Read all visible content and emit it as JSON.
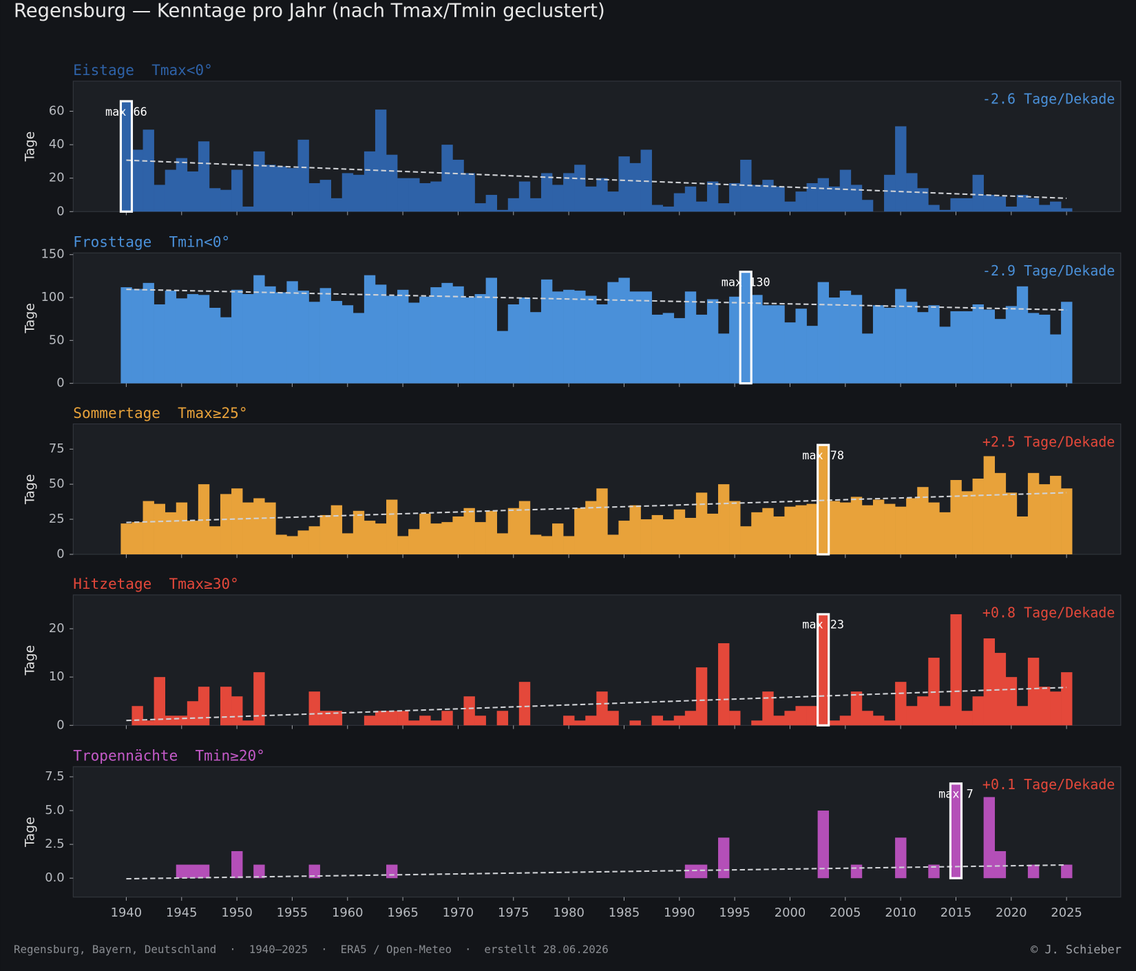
{
  "title": "Regensburg — Kenntage pro Jahr (nach Tmax/Tmin geclustert)",
  "footer": {
    "left": "Regensburg, Bayern, Deutschland  ·  1940–2025  ·  ERA5 / Open-Meteo  ·  erstellt 28.06.2026",
    "right": "© J. Schieber"
  },
  "chart_data": [
    {
      "type": "bar",
      "title": "Eistage",
      "subtitle": "Tmax<0°",
      "ylabel": "Tage",
      "color": "#2e62a8",
      "annotation": "max 66",
      "trend_label": "-2.6 Tage/Dekade",
      "trend_color": "#4a90d9",
      "x": [
        1940,
        1941,
        1942,
        1943,
        1944,
        1945,
        1946,
        1947,
        1948,
        1949,
        1950,
        1951,
        1952,
        1953,
        1954,
        1955,
        1956,
        1957,
        1958,
        1959,
        1960,
        1961,
        1962,
        1963,
        1964,
        1965,
        1966,
        1967,
        1968,
        1969,
        1970,
        1971,
        1972,
        1973,
        1974,
        1975,
        1976,
        1977,
        1978,
        1979,
        1980,
        1981,
        1982,
        1983,
        1984,
        1985,
        1986,
        1987,
        1988,
        1989,
        1990,
        1991,
        1992,
        1993,
        1994,
        1995,
        1996,
        1997,
        1998,
        1999,
        2000,
        2001,
        2002,
        2003,
        2004,
        2005,
        2006,
        2007,
        2008,
        2009,
        2010,
        2011,
        2012,
        2013,
        2014,
        2015,
        2016,
        2017,
        2018,
        2019,
        2020,
        2021,
        2022,
        2023,
        2024,
        2025
      ],
      "values": [
        66,
        37,
        49,
        16,
        25,
        32,
        24,
        42,
        14,
        13,
        25,
        3,
        36,
        28,
        27,
        26,
        43,
        17,
        19,
        8,
        23,
        22,
        36,
        61,
        34,
        20,
        20,
        17,
        18,
        40,
        31,
        23,
        5,
        10,
        1,
        8,
        18,
        8,
        23,
        16,
        23,
        28,
        15,
        20,
        12,
        33,
        29,
        37,
        4,
        3,
        11,
        15,
        6,
        18,
        5,
        17,
        31,
        16,
        19,
        15,
        6,
        12,
        17,
        20,
        15,
        25,
        16,
        7,
        0,
        22,
        51,
        23,
        14,
        4,
        1,
        8,
        8,
        22,
        10,
        9,
        3,
        10,
        8,
        4,
        6,
        2
      ],
      "xlim": [
        1935.2,
        2029.9
      ],
      "xticks": [
        1940,
        1945,
        1950,
        1955,
        1960,
        1965,
        1970,
        1975,
        1980,
        1985,
        1990,
        1995,
        2000,
        2005,
        2010,
        2015,
        2020,
        2025
      ],
      "ylim": [
        0,
        78
      ],
      "yticks": [
        0,
        20,
        40,
        60
      ]
    },
    {
      "type": "bar",
      "title": "Frosttage",
      "subtitle": "Tmin<0°",
      "ylabel": "Tage",
      "color": "#4a90d9",
      "annotation": "max 130",
      "trend_label": "-2.9 Tage/Dekade",
      "trend_color": "#4a90d9",
      "x": [
        1940,
        1941,
        1942,
        1943,
        1944,
        1945,
        1946,
        1947,
        1948,
        1949,
        1950,
        1951,
        1952,
        1953,
        1954,
        1955,
        1956,
        1957,
        1958,
        1959,
        1960,
        1961,
        1962,
        1963,
        1964,
        1965,
        1966,
        1967,
        1968,
        1969,
        1970,
        1971,
        1972,
        1973,
        1974,
        1975,
        1976,
        1977,
        1978,
        1979,
        1980,
        1981,
        1982,
        1983,
        1984,
        1985,
        1986,
        1987,
        1988,
        1989,
        1990,
        1991,
        1992,
        1993,
        1994,
        1995,
        1996,
        1997,
        1998,
        1999,
        2000,
        2001,
        2002,
        2003,
        2004,
        2005,
        2006,
        2007,
        2008,
        2009,
        2010,
        2011,
        2012,
        2013,
        2014,
        2015,
        2016,
        2017,
        2018,
        2019,
        2020,
        2021,
        2022,
        2023,
        2024,
        2025
      ],
      "values": [
        112,
        110,
        117,
        92,
        108,
        99,
        104,
        103,
        88,
        77,
        109,
        104,
        126,
        113,
        106,
        119,
        108,
        95,
        111,
        96,
        91,
        82,
        126,
        115,
        102,
        109,
        94,
        101,
        112,
        117,
        113,
        100,
        104,
        123,
        61,
        92,
        100,
        83,
        121,
        107,
        109,
        108,
        102,
        92,
        118,
        123,
        107,
        107,
        80,
        82,
        76,
        107,
        80,
        98,
        58,
        101,
        130,
        103,
        91,
        91,
        71,
        87,
        67,
        118,
        100,
        108,
        103,
        58,
        91,
        88,
        110,
        95,
        83,
        91,
        66,
        84,
        84,
        92,
        86,
        75,
        90,
        113,
        82,
        80,
        57,
        95
      ],
      "xlim": [
        1935.2,
        2029.9
      ],
      "xticks": [
        1940,
        1945,
        1950,
        1955,
        1960,
        1965,
        1970,
        1975,
        1980,
        1985,
        1990,
        1995,
        2000,
        2005,
        2010,
        2015,
        2020,
        2025
      ],
      "ylim": [
        0,
        152
      ],
      "yticks": [
        0,
        50,
        100,
        150
      ]
    },
    {
      "type": "bar",
      "title": "Sommertage",
      "subtitle": "Tmax≥25°",
      "ylabel": "Tage",
      "color": "#e8a23a",
      "annotation": "max 78",
      "trend_label": "+2.5 Tage/Dekade",
      "trend_color": "#e4483a",
      "x": [
        1940,
        1941,
        1942,
        1943,
        1944,
        1945,
        1946,
        1947,
        1948,
        1949,
        1950,
        1951,
        1952,
        1953,
        1954,
        1955,
        1956,
        1957,
        1958,
        1959,
        1960,
        1961,
        1962,
        1963,
        1964,
        1965,
        1966,
        1967,
        1968,
        1969,
        1970,
        1971,
        1972,
        1973,
        1974,
        1975,
        1976,
        1977,
        1978,
        1979,
        1980,
        1981,
        1982,
        1983,
        1984,
        1985,
        1986,
        1987,
        1988,
        1989,
        1990,
        1991,
        1992,
        1993,
        1994,
        1995,
        1996,
        1997,
        1998,
        1999,
        2000,
        2001,
        2002,
        2003,
        2004,
        2005,
        2006,
        2007,
        2008,
        2009,
        2010,
        2011,
        2012,
        2013,
        2014,
        2015,
        2016,
        2017,
        2018,
        2019,
        2020,
        2021,
        2022,
        2023,
        2024,
        2025
      ],
      "values": [
        22,
        23,
        38,
        36,
        30,
        37,
        24,
        50,
        20,
        43,
        47,
        37,
        40,
        37,
        14,
        13,
        17,
        20,
        28,
        35,
        15,
        31,
        24,
        22,
        39,
        13,
        18,
        29,
        22,
        23,
        27,
        33,
        23,
        31,
        15,
        33,
        38,
        14,
        13,
        22,
        13,
        33,
        38,
        47,
        14,
        24,
        35,
        25,
        28,
        25,
        32,
        26,
        44,
        29,
        50,
        38,
        20,
        30,
        33,
        27,
        34,
        35,
        36,
        78,
        38,
        37,
        41,
        35,
        39,
        36,
        34,
        40,
        48,
        37,
        30,
        53,
        45,
        54,
        70,
        58,
        44,
        27,
        58,
        50,
        56,
        47
      ],
      "xlim": [
        1935.2,
        2029.9
      ],
      "xticks": [
        1940,
        1945,
        1950,
        1955,
        1960,
        1965,
        1970,
        1975,
        1980,
        1985,
        1990,
        1995,
        2000,
        2005,
        2010,
        2015,
        2020,
        2025
      ],
      "ylim": [
        0,
        93
      ],
      "yticks": [
        0,
        25,
        50,
        75
      ]
    },
    {
      "type": "bar",
      "title": "Hitzetage",
      "subtitle": "Tmax≥30°",
      "ylabel": "Tage",
      "color": "#e4483a",
      "annotation": "max 23",
      "trend_label": "+0.8 Tage/Dekade",
      "trend_color": "#e4483a",
      "x": [
        1940,
        1941,
        1942,
        1943,
        1944,
        1945,
        1946,
        1947,
        1948,
        1949,
        1950,
        1951,
        1952,
        1953,
        1954,
        1955,
        1956,
        1957,
        1958,
        1959,
        1960,
        1961,
        1962,
        1963,
        1964,
        1965,
        1966,
        1967,
        1968,
        1969,
        1970,
        1971,
        1972,
        1973,
        1974,
        1975,
        1976,
        1977,
        1978,
        1979,
        1980,
        1981,
        1982,
        1983,
        1984,
        1985,
        1986,
        1987,
        1988,
        1989,
        1990,
        1991,
        1992,
        1993,
        1994,
        1995,
        1996,
        1997,
        1998,
        1999,
        2000,
        2001,
        2002,
        2003,
        2004,
        2005,
        2006,
        2007,
        2008,
        2009,
        2010,
        2011,
        2012,
        2013,
        2014,
        2015,
        2016,
        2017,
        2018,
        2019,
        2020,
        2021,
        2022,
        2023,
        2024,
        2025
      ],
      "values": [
        0,
        4,
        1,
        10,
        2,
        2,
        5,
        8,
        0,
        8,
        6,
        1,
        11,
        0,
        0,
        0,
        0,
        7,
        3,
        3,
        0,
        0,
        2,
        3,
        3,
        3,
        1,
        2,
        1,
        3,
        0,
        6,
        2,
        0,
        3,
        0,
        9,
        0,
        0,
        0,
        2,
        1,
        2,
        7,
        3,
        0,
        1,
        0,
        2,
        1,
        2,
        3,
        12,
        0,
        17,
        3,
        0,
        1,
        7,
        2,
        3,
        4,
        4,
        23,
        1,
        2,
        7,
        3,
        2,
        1,
        9,
        4,
        6,
        14,
        4,
        23,
        3,
        6,
        18,
        15,
        10,
        4,
        14,
        8,
        7,
        11
      ],
      "xlim": [
        1935.2,
        2029.9
      ],
      "xticks": [
        1940,
        1945,
        1950,
        1955,
        1960,
        1965,
        1970,
        1975,
        1980,
        1985,
        1990,
        1995,
        2000,
        2005,
        2010,
        2015,
        2020,
        2025
      ],
      "ylim": [
        0,
        27
      ],
      "yticks": [
        0,
        10,
        20
      ]
    },
    {
      "type": "bar",
      "title": "Tropennächte",
      "subtitle": "Tmin≥20°",
      "ylabel": "Tage",
      "color": "#b44fb8",
      "title_color": "#c45ac8",
      "annotation": "max 7",
      "trend_label": "+0.1 Tage/Dekade",
      "trend_color": "#e4483a",
      "x": [
        1940,
        1941,
        1942,
        1943,
        1944,
        1945,
        1946,
        1947,
        1948,
        1949,
        1950,
        1951,
        1952,
        1953,
        1954,
        1955,
        1956,
        1957,
        1958,
        1959,
        1960,
        1961,
        1962,
        1963,
        1964,
        1965,
        1966,
        1967,
        1968,
        1969,
        1970,
        1971,
        1972,
        1973,
        1974,
        1975,
        1976,
        1977,
        1978,
        1979,
        1980,
        1981,
        1982,
        1983,
        1984,
        1985,
        1986,
        1987,
        1988,
        1989,
        1990,
        1991,
        1992,
        1993,
        1994,
        1995,
        1996,
        1997,
        1998,
        1999,
        2000,
        2001,
        2002,
        2003,
        2004,
        2005,
        2006,
        2007,
        2008,
        2009,
        2010,
        2011,
        2012,
        2013,
        2014,
        2015,
        2016,
        2017,
        2018,
        2019,
        2020,
        2021,
        2022,
        2023,
        2024,
        2025
      ],
      "values": [
        0,
        0,
        0,
        0,
        0,
        1,
        1,
        1,
        0,
        0,
        2,
        0,
        1,
        0,
        0,
        0,
        0,
        1,
        0,
        0,
        0,
        0,
        0,
        0,
        1,
        0,
        0,
        0,
        0,
        0,
        0,
        0,
        0,
        0,
        0,
        0,
        0,
        0,
        0,
        0,
        0,
        0,
        0,
        0,
        0,
        0,
        0,
        0,
        0,
        0,
        0,
        1,
        1,
        0,
        3,
        0,
        0,
        0,
        0,
        0,
        0,
        0,
        0,
        5,
        0,
        0,
        1,
        0,
        0,
        0,
        3,
        0,
        0,
        1,
        0,
        7,
        0,
        0,
        6,
        2,
        0,
        0,
        1,
        0,
        0,
        1
      ],
      "xlim": [
        1935.2,
        2029.9
      ],
      "xticks": [
        1940,
        1945,
        1950,
        1955,
        1960,
        1965,
        1970,
        1975,
        1980,
        1985,
        1990,
        1995,
        2000,
        2005,
        2010,
        2015,
        2020,
        2025
      ],
      "ylim": [
        -1.4,
        8.25
      ],
      "yticks": [
        {
          "value": 0,
          "label": "0.0"
        },
        2.5,
        {
          "value": 5,
          "label": "5.0"
        },
        7.5
      ],
      "show_xtick_labels": true
    }
  ]
}
